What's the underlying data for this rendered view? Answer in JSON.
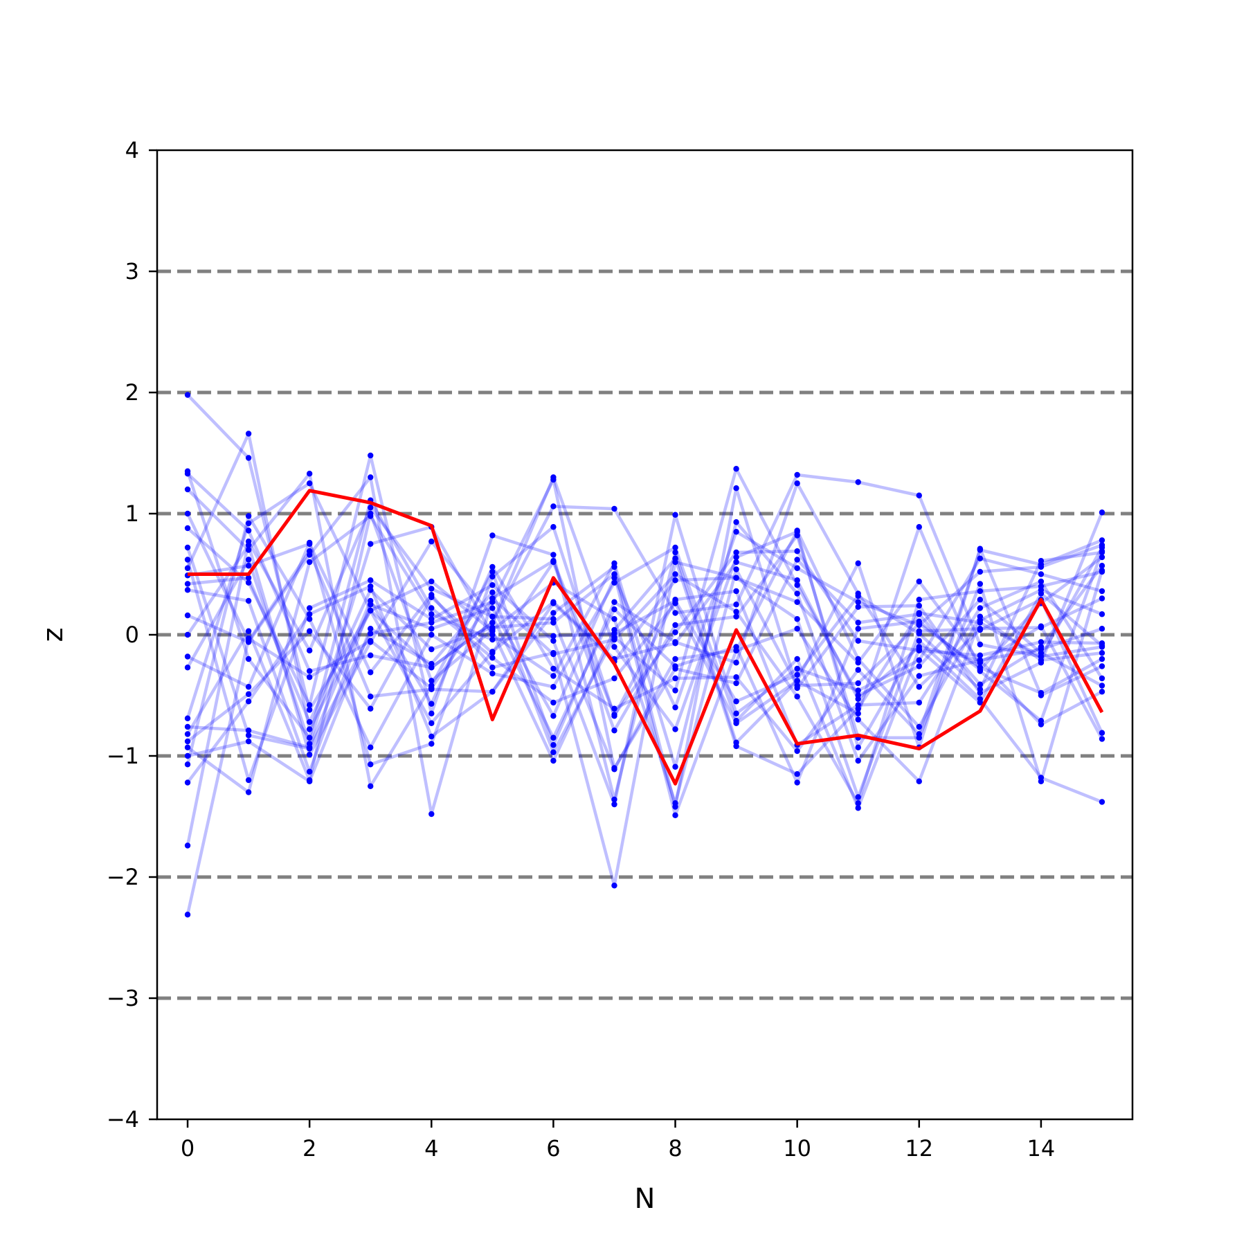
{
  "chart_data": {
    "type": "line",
    "title": "",
    "xlabel": "N",
    "ylabel": "z",
    "xlim": [
      -0.5,
      15.5
    ],
    "ylim": [
      -4,
      4
    ],
    "x_ticks": [
      0,
      2,
      4,
      6,
      8,
      10,
      12,
      14
    ],
    "x_tick_labels": [
      "0",
      "2",
      "4",
      "6",
      "8",
      "10",
      "12",
      "14"
    ],
    "y_ticks": [
      -4,
      -3,
      -2,
      -1,
      0,
      1,
      2,
      3,
      4
    ],
    "y_tick_labels": [
      "−4",
      "−3",
      "−2",
      "−1",
      "0",
      "1",
      "2",
      "3",
      "4"
    ],
    "reference_lines": [
      -3,
      -2,
      -1,
      0,
      1,
      2,
      3
    ],
    "x": [
      0,
      1,
      2,
      3,
      4,
      5,
      6,
      7,
      8,
      9,
      10,
      11,
      12,
      13,
      14,
      15
    ],
    "colors": {
      "background_series": "#0000ff",
      "highlight": "#ff0000",
      "reference_line": "#808080",
      "axis": "#000000"
    },
    "background_series": [
      [
        1.98,
        1.46,
        -0.62,
        0.2,
        -0.27,
        0.1,
        1.3,
        -0.1,
        -0.78,
        0.64,
        0.85,
        -0.93,
        -0.05,
        -0.53,
        -1.18,
        -1.38
      ],
      [
        1.35,
        -0.2,
        -0.85,
        1.11,
        0.22,
        -0.19,
        -0.56,
        -0.36,
        0.26,
        -0.73,
        -0.38,
        0.59,
        -0.93,
        0.71,
        -0.5,
        -0.26
      ],
      [
        1.33,
        0.86,
        -0.3,
        -0.17,
        -0.27,
        0.1,
        1.06,
        1.04,
        0.18,
        0.25,
        1.32,
        1.26,
        1.15,
        -0.08,
        -0.18,
        -0.1
      ],
      [
        1.2,
        0.7,
        1.33,
        -1.25,
        -0.42,
        0.52,
        -0.91,
        0.27,
        -0.06,
        -0.23,
        1.25,
        0.34,
        -0.43,
        0.04,
        0.29,
        -0.81
      ],
      [
        1.0,
        -0.05,
        0.69,
        -0.51,
        -0.45,
        -0.47,
        0.18,
        0.56,
        -1.42,
        1.21,
        -0.44,
        0.23,
        0.24,
        -0.48,
        -0.23,
        1.01
      ],
      [
        0.88,
        0.43,
        -0.58,
        1.48,
        -0.65,
        0.82,
        0.66,
        -1.36,
        0.68,
        -0.89,
        -0.38,
        -0.65,
        0.89,
        -0.3,
        -0.71,
        0.69
      ],
      [
        0.72,
        -0.83,
        -0.94,
        0.01,
        0.1,
        0.27,
        1.28,
        -1.1,
        -0.28,
        -0.4,
        0.62,
        0.1,
        0.17,
        -0.41,
        -0.1,
        0.57
      ],
      [
        0.62,
        -1.2,
        0.22,
        0.45,
        0.13,
        0.41,
        -0.05,
        -1.4,
        0.99,
        -0.65,
        -0.28,
        -0.46,
        -0.21,
        0.63,
        0.5,
        0.36
      ],
      [
        0.49,
        0.57,
        0.75,
        -0.31,
        0.33,
        -0.27,
        -0.15,
        -2.07,
        0.6,
        0.47,
        0.13,
        -1.34,
        0.03,
        0.05,
        0.06,
        0.3
      ],
      [
        0.42,
        0.47,
        -0.72,
        0.37,
        -0.12,
        0.06,
        0.1,
        0.5,
        -1.49,
        -0.13,
        0.86,
        -0.2,
        -0.76,
        0.15,
        -0.21,
        -0.15
      ],
      [
        0.37,
        0.28,
        -1.13,
        0.25,
        0.05,
        0.22,
        -0.67,
        0.47,
        -0.6,
        0.85,
        0.55,
        0.27,
        0.08,
        0.52,
        0.56,
        0.74
      ],
      [
        0.16,
        -0.06,
        0.66,
        1.3,
        -1.48,
        0.3,
        -0.16,
        -0.04,
        0.5,
        0.19,
        -0.51,
        -1.39,
        0.29,
        0.36,
        0.4,
        0.52
      ],
      [
        0.0,
        0.74,
        -0.99,
        -0.06,
        0.77,
        0.15,
        -0.85,
        0.21,
        -0.26,
        -0.1,
        -1.22,
        0.05,
        0.11,
        -0.29,
        0.26,
        0.64
      ],
      [
        -0.18,
        -0.43,
        0.76,
        -1.07,
        -0.9,
        0.48,
        0.89,
        -0.67,
        0.29,
        0.36,
        -0.91,
        -0.58,
        -0.56,
        0.22,
        0.44,
        -0.36
      ],
      [
        -0.27,
        0.62,
        -0.9,
        0.75,
        0.89,
        0.0,
        -0.34,
        0.59,
        -1.09,
        0.93,
        0.34,
        -1.04,
        -0.34,
        -0.21,
        -0.12,
        0.05
      ],
      [
        -0.69,
        0.92,
        1.25,
        0.2,
        -0.73,
        -0.14,
        0.27,
        -0.2,
        -0.07,
        0.6,
        0.45,
        -0.53,
        -0.1,
        -0.21,
        -0.74,
        -0.47
      ],
      [
        -0.76,
        -0.79,
        -0.93,
        0.28,
        -0.57,
        0.56,
        -0.28,
        -0.61,
        -0.36,
        -0.35,
        -0.96,
        -0.29,
        -0.82,
        0.7,
        0.58,
        0.78
      ],
      [
        -0.82,
        0.03,
        -1.2,
        1.0,
        -0.38,
        0.04,
        0.43,
        0.13,
        -1.39,
        0.54,
        -0.42,
        -0.4,
        0.09,
        -0.27,
        -0.48,
        -0.2
      ],
      [
        -0.88,
        -0.49,
        0.03,
        -0.61,
        0.31,
        -0.15,
        0.6,
        -0.79,
        0.08,
        0.15,
        0.82,
        -0.85,
        -0.85,
        0.42,
        -1.21,
        0.53
      ],
      [
        -0.93,
        -1.3,
        0.6,
        0.98,
        0.17,
        -0.04,
        -0.01,
        0.01,
        0.28,
        -0.55,
        -0.33,
        0.32,
        0.01,
        -0.45,
        0.61,
        0.68
      ],
      [
        -1.0,
        -0.88,
        -1.21,
        0.05,
        -0.24,
        0.35,
        -0.97,
        -0.02,
        -0.46,
        1.37,
        0.41,
        -0.5,
        -0.26,
        0.29,
        -0.15,
        -0.42
      ],
      [
        -1.07,
        0.98,
        0.13,
        -0.93,
        0.0,
        -0.32,
        -0.43,
        0.43,
        0.72,
        -0.71,
        -0.2,
        -1.43,
        -0.12,
        -0.56,
        0.34,
        -0.09
      ],
      [
        -1.22,
        -0.55,
        0.17,
        0.4,
        -0.84,
        -0.47,
        0.26,
        -0.22,
        0.45,
        0.47,
        0.27,
        -0.23,
        0.44,
        -0.23,
        0.07,
        -0.86
      ],
      [
        -1.74,
        0.77,
        -0.13,
        1.05,
        0.38,
        0.15,
        0.13,
        -1.11,
        -0.2,
        -0.13,
        0.05,
        -0.7,
        -1.21,
        0.12,
        0.37,
        0.17
      ],
      [
        -2.31,
        -0.03,
        -0.35,
        -0.05,
        -0.44,
        0.3,
        0.61,
        -0.66,
        0.02,
        0.68,
        0.69,
        -0.05,
        -0.13,
        -0.17,
        -0.06,
        -0.07
      ],
      [
        0.55,
        1.66,
        -0.78,
        0.2,
        0.44,
        0.03,
        -1.04,
        0.04,
        0.63,
        -0.92,
        -1.15,
        -0.61,
        0.18,
        0.1,
        -0.18,
        0.72
      ]
    ],
    "series": [
      {
        "values": [
          0.5,
          0.5,
          1.19,
          1.09,
          0.9,
          -0.7,
          0.47,
          -0.24,
          -1.23,
          0.04,
          -0.9,
          -0.83,
          -0.94,
          -0.63,
          0.29,
          -0.64
        ]
      }
    ]
  }
}
